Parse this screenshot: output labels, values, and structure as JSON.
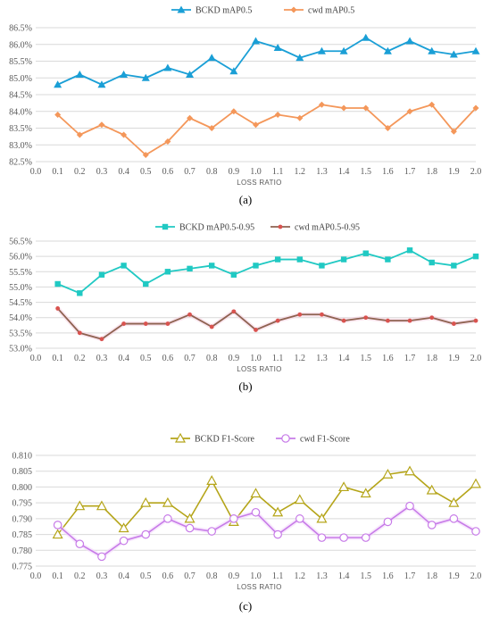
{
  "colors": {
    "bckd_a": "#1a9fd6",
    "cwd_a": "#f4975a",
    "bckd_b": "#20c9c3",
    "cwd_b": "#8e6250",
    "cwd_b_marker": "#d9534f",
    "bckd_c": "#b5a51a",
    "cwd_c": "#c77be8"
  },
  "chart_data": [
    {
      "type": "line",
      "caption": "(a)",
      "xlabel": "LOSS RATIO",
      "ylabel": "",
      "x_ticks": [
        "0.0",
        "0.1",
        "0.2",
        "0.3",
        "0.4",
        "0.5",
        "0.6",
        "0.7",
        "0.8",
        "0.9",
        "1.0",
        "1.1",
        "1.2",
        "1.3",
        "1.4",
        "1.5",
        "1.6",
        "1.7",
        "1.8",
        "1.9",
        "2.0"
      ],
      "y_ticks": [
        "82.5%",
        "83.0%",
        "83.5%",
        "84.0%",
        "84.5%",
        "85.0%",
        "85.5%",
        "86.0%",
        "86.5%"
      ],
      "ylim": [
        82.5,
        86.5
      ],
      "x": [
        0.1,
        0.2,
        0.3,
        0.4,
        0.5,
        0.6,
        0.7,
        0.8,
        0.9,
        1.0,
        1.1,
        1.2,
        1.3,
        1.4,
        1.5,
        1.6,
        1.7,
        1.8,
        1.9,
        2.0
      ],
      "legend_position": "top",
      "series": [
        {
          "name": "BCKD mAP0.5",
          "color_key": "bckd_a",
          "marker": "triangle",
          "values": [
            84.8,
            85.1,
            84.8,
            85.1,
            85.0,
            85.3,
            85.1,
            85.6,
            85.2,
            86.1,
            85.9,
            85.6,
            85.8,
            85.8,
            86.2,
            85.8,
            86.1,
            85.8,
            85.7,
            85.8
          ]
        },
        {
          "name": "cwd mAP0.5",
          "color_key": "cwd_a",
          "marker": "diamond",
          "values": [
            83.9,
            83.3,
            83.6,
            83.3,
            82.7,
            83.1,
            83.8,
            83.5,
            84.0,
            83.6,
            83.9,
            83.8,
            84.2,
            84.1,
            84.1,
            83.5,
            84.0,
            84.2,
            83.4,
            84.1
          ]
        }
      ]
    },
    {
      "type": "line",
      "caption": "(b)",
      "xlabel": "LOSS RATIO",
      "ylabel": "",
      "x_ticks": [
        "0.0",
        "0.1",
        "0.2",
        "0.3",
        "0.4",
        "0.5",
        "0.6",
        "0.7",
        "0.8",
        "0.9",
        "1.0",
        "1.1",
        "1.2",
        "1.3",
        "1.4",
        "1.5",
        "1.6",
        "1.7",
        "1.8",
        "1.9",
        "2.0"
      ],
      "y_ticks": [
        "53.0%",
        "53.5%",
        "54.0%",
        "54.5%",
        "55.0%",
        "55.5%",
        "56.0%",
        "56.5%"
      ],
      "ylim": [
        53.0,
        56.5
      ],
      "x": [
        0.1,
        0.2,
        0.3,
        0.4,
        0.5,
        0.6,
        0.7,
        0.8,
        0.9,
        1.0,
        1.1,
        1.2,
        1.3,
        1.4,
        1.5,
        1.6,
        1.7,
        1.8,
        1.9,
        2.0
      ],
      "legend_position": "top",
      "series": [
        {
          "name": "BCKD mAP0.5-0.95",
          "color_key": "bckd_b",
          "marker": "square",
          "values": [
            55.1,
            54.8,
            55.4,
            55.7,
            55.1,
            55.5,
            55.6,
            55.7,
            55.4,
            55.7,
            55.9,
            55.9,
            55.7,
            55.9,
            56.1,
            55.9,
            56.2,
            55.8,
            55.7,
            56.0
          ]
        },
        {
          "name": "cwd mAP0.5-0.95",
          "color_key": "cwd_b",
          "marker": "dot",
          "values": [
            54.3,
            53.5,
            53.3,
            53.8,
            53.8,
            53.8,
            54.1,
            53.7,
            54.2,
            53.6,
            53.9,
            54.1,
            54.1,
            53.9,
            54.0,
            53.9,
            53.9,
            54.0,
            53.8,
            53.9
          ]
        }
      ]
    },
    {
      "type": "line",
      "caption": "(c)",
      "xlabel": "LOSS RATIO",
      "ylabel": "",
      "x_ticks": [
        "0.0",
        "0.1",
        "0.2",
        "0.3",
        "0.4",
        "0.5",
        "0.6",
        "0.7",
        "0.8",
        "0.9",
        "1.0",
        "1.1",
        "1.2",
        "1.3",
        "1.4",
        "1.5",
        "1.6",
        "1.7",
        "1.8",
        "1.9",
        "2.0"
      ],
      "y_ticks": [
        "0.775",
        "0.780",
        "0.785",
        "0.790",
        "0.795",
        "0.800",
        "0.805",
        "0.810"
      ],
      "ylim": [
        0.775,
        0.81
      ],
      "x": [
        0.1,
        0.2,
        0.3,
        0.4,
        0.5,
        0.6,
        0.7,
        0.8,
        0.9,
        1.0,
        1.1,
        1.2,
        1.3,
        1.4,
        1.5,
        1.6,
        1.7,
        1.8,
        1.9,
        2.0
      ],
      "legend_position": "top",
      "series": [
        {
          "name": "BCKD F1-Score",
          "color_key": "bckd_c",
          "marker": "open-triangle",
          "values": [
            0.785,
            0.794,
            0.794,
            0.787,
            0.795,
            0.795,
            0.79,
            0.802,
            0.789,
            0.798,
            0.792,
            0.796,
            0.79,
            0.8,
            0.798,
            0.804,
            0.805,
            0.799,
            0.795,
            0.801
          ]
        },
        {
          "name": "cwd F1-Score",
          "color_key": "cwd_c",
          "marker": "open-circle",
          "values": [
            0.788,
            0.782,
            0.778,
            0.783,
            0.785,
            0.79,
            0.787,
            0.786,
            0.79,
            0.792,
            0.785,
            0.79,
            0.784,
            0.784,
            0.784,
            0.789,
            0.794,
            0.788,
            0.79,
            0.786
          ]
        }
      ]
    }
  ]
}
